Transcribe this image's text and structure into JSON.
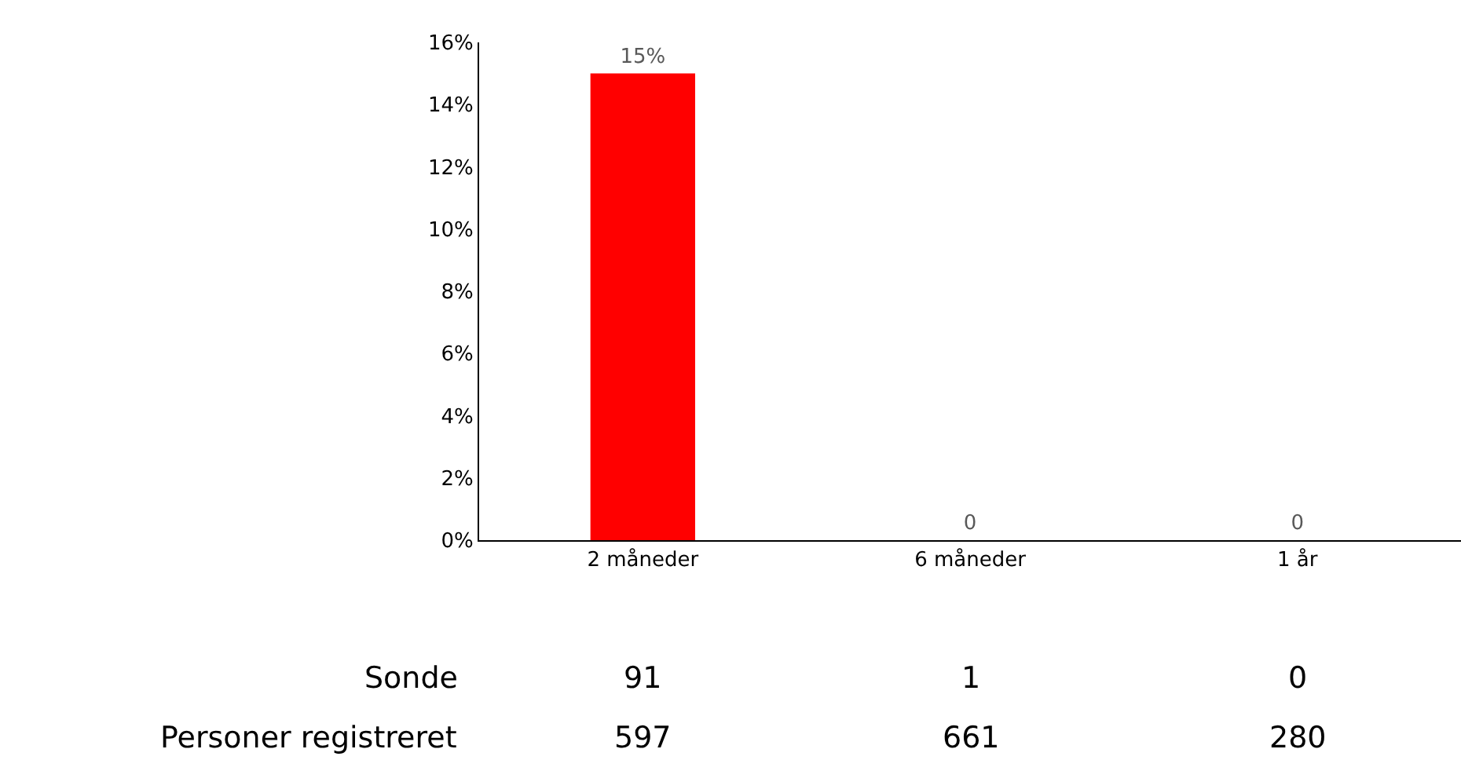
{
  "chart_data": {
    "type": "bar",
    "categories": [
      "2 måneder",
      "6 måneder",
      "1 år"
    ],
    "values": [
      15,
      0,
      0
    ],
    "value_labels": [
      "15%",
      "0",
      "0"
    ],
    "color": "#ff0000",
    "ylim": [
      0,
      16
    ],
    "yticks": [
      {
        "value": 0,
        "label": "0%"
      },
      {
        "value": 2,
        "label": "2%"
      },
      {
        "value": 4,
        "label": "4%"
      },
      {
        "value": 6,
        "label": "6%"
      },
      {
        "value": 8,
        "label": "8%"
      },
      {
        "value": 10,
        "label": "10%"
      },
      {
        "value": 12,
        "label": "12%"
      },
      {
        "value": 14,
        "label": "14%"
      },
      {
        "value": 16,
        "label": "16%"
      }
    ],
    "legend": false,
    "annotations": [
      "Sonde",
      "91",
      "1",
      "0",
      "Personer registreret",
      "597",
      "661",
      "280"
    ]
  }
}
